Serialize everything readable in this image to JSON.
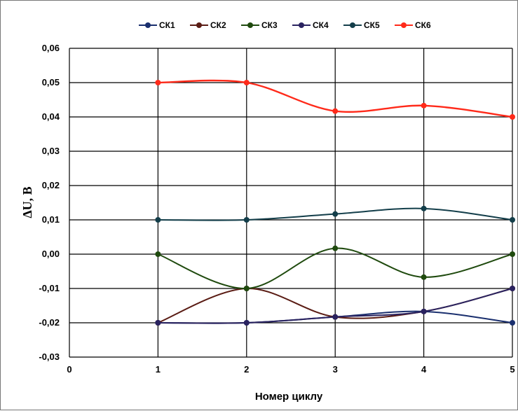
{
  "chart_data": {
    "type": "line",
    "title": "",
    "xlabel": "Номер циклу",
    "ylabel": "ΔU, В",
    "xlim": [
      0,
      5
    ],
    "ylim": [
      -0.03,
      0.06
    ],
    "x_ticks": [
      "0",
      "1",
      "2",
      "3",
      "4",
      "5"
    ],
    "y_ticks": [
      "0,06",
      "0,05",
      "0,04",
      "0,03",
      "0,02",
      "0,01",
      "0,00",
      "-0,01",
      "-0,02",
      "-0,03"
    ],
    "grid": true,
    "legend_position": "top",
    "x": [
      1,
      2,
      3,
      4,
      5
    ],
    "series": [
      {
        "name": "СК1",
        "color": "#1a2f6e",
        "values": [
          -0.02,
          -0.02,
          -0.0183,
          -0.0167,
          -0.02
        ]
      },
      {
        "name": "СК2",
        "color": "#5a1c14",
        "values": [
          -0.02,
          -0.01,
          -0.0183,
          -0.0167,
          -0.01
        ]
      },
      {
        "name": "СК3",
        "color": "#1f4a0e",
        "values": [
          0.0,
          -0.01,
          0.0017,
          -0.0067,
          0.0
        ]
      },
      {
        "name": "СК4",
        "color": "#2a2360",
        "values": [
          -0.02,
          -0.02,
          -0.0183,
          -0.0167,
          -0.01
        ]
      },
      {
        "name": "СК5",
        "color": "#133e4a",
        "values": [
          0.01,
          0.01,
          0.0117,
          0.0133,
          0.01
        ]
      },
      {
        "name": "СК6",
        "color": "#ff2a1a",
        "values": [
          0.05,
          0.05,
          0.0417,
          0.0433,
          0.04
        ]
      }
    ]
  }
}
